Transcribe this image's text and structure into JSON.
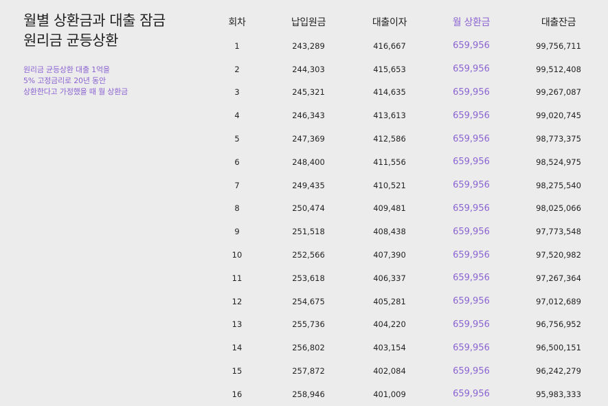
{
  "title_lines": [
    "월별 상환금과 대출 잠금",
    "원리금 균등상환"
  ],
  "subtitle_lines": [
    "원리금 균등상환 대출 1억을",
    "5% 고정금리로 20년 동안",
    "상환한다고 가정했을 때 월 상환금"
  ],
  "colors": {
    "accent": "#8a63d2",
    "background": "#ececec",
    "text": "#222222"
  },
  "table": {
    "headers": [
      "회차",
      "납입원금",
      "대출이자",
      "월 상환금",
      "대출잔금"
    ],
    "rows": [
      [
        "1",
        "243,289",
        "416,667",
        "659,956",
        "99,756,711"
      ],
      [
        "2",
        "244,303",
        "415,653",
        "659,956",
        "99,512,408"
      ],
      [
        "3",
        "245,321",
        "414,635",
        "659,956",
        "99,267,087"
      ],
      [
        "4",
        "246,343",
        "413,613",
        "659,956",
        "99,020,745"
      ],
      [
        "5",
        "247,369",
        "412,586",
        "659,956",
        "98,773,375"
      ],
      [
        "6",
        "248,400",
        "411,556",
        "659,956",
        "98,524,975"
      ],
      [
        "7",
        "249,435",
        "410,521",
        "659,956",
        "98,275,540"
      ],
      [
        "8",
        "250,474",
        "409,481",
        "659,956",
        "98,025,066"
      ],
      [
        "9",
        "251,518",
        "408,438",
        "659,956",
        "97,773,548"
      ],
      [
        "10",
        "252,566",
        "407,390",
        "659,956",
        "97,520,982"
      ],
      [
        "11",
        "253,618",
        "406,337",
        "659,956",
        "97,267,364"
      ],
      [
        "12",
        "254,675",
        "405,281",
        "659,956",
        "97,012,689"
      ],
      [
        "13",
        "255,736",
        "404,220",
        "659,956",
        "96,756,952"
      ],
      [
        "14",
        "256,802",
        "403,154",
        "659,956",
        "96,500,151"
      ],
      [
        "15",
        "257,872",
        "402,084",
        "659,956",
        "96,242,279"
      ],
      [
        "16",
        "258,946",
        "401,009",
        "659,956",
        "95,983,333"
      ]
    ]
  }
}
